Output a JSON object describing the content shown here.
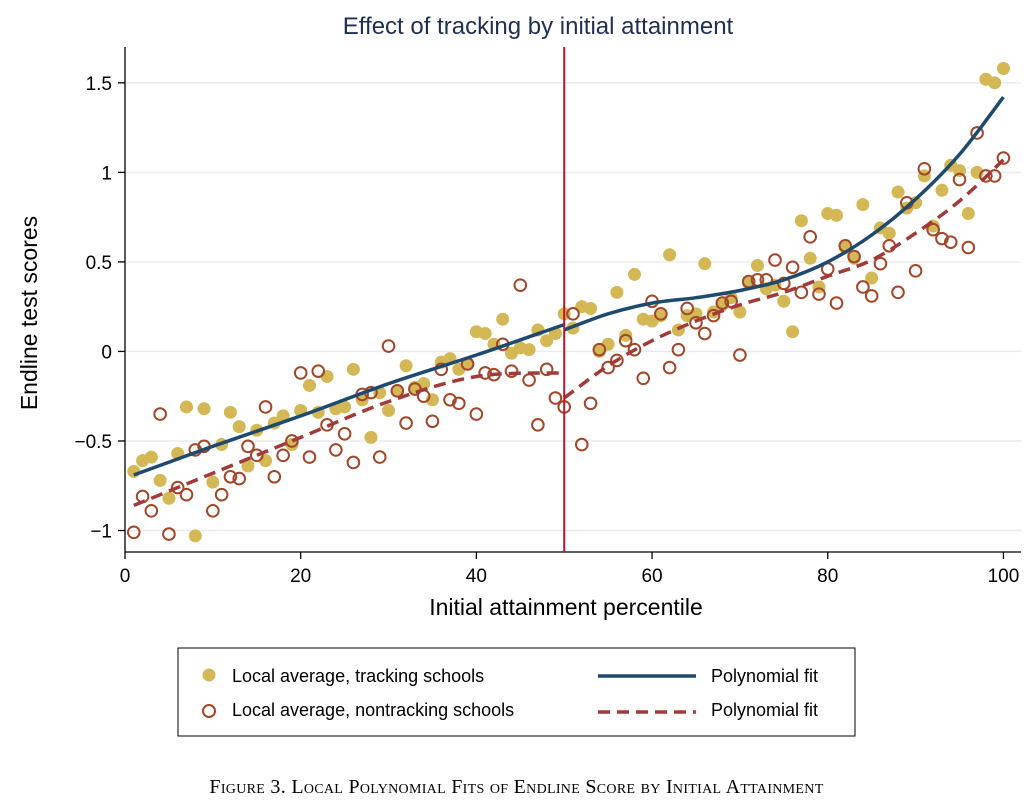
{
  "caption": "Figure 3. Local Polynomial Fits of Endline Score by Initial Attainment",
  "colors": {
    "tracking": "#d3b855",
    "nontracking": "#a2472a",
    "fit_tracking": "#1e4a6e",
    "fit_nontracking": "#a23a3a",
    "cutoff": "#c0112c",
    "grid": "#e9ecef",
    "title": "#1f2f52"
  },
  "chart_data": {
    "type": "scatter",
    "title": "Effect of tracking by initial attainment",
    "xlabel": "Initial attainment percentile",
    "ylabel": "Endline test scores",
    "xlim": [
      0,
      102
    ],
    "ylim": [
      -1.12,
      1.7
    ],
    "xticks": [
      0,
      20,
      40,
      60,
      80,
      100
    ],
    "yticks": [
      1.5,
      1,
      0.5,
      0,
      -0.5,
      -1
    ],
    "ytick_labels": [
      "1.5",
      "1",
      "0.5",
      "0",
      "−0.5",
      "−1"
    ],
    "grid": "horizontal",
    "cutoff_x": 50,
    "legend_position": "bottom",
    "legend": [
      {
        "label": "Local average, tracking schools",
        "symbol": "filled-circle",
        "color": "#d3b855"
      },
      {
        "label": "Polynomial fit",
        "symbol": "solid-line",
        "color": "#1e4a6e"
      },
      {
        "label": "Local average, nontracking schools",
        "symbol": "hollow-circle",
        "color": "#a2472a"
      },
      {
        "label": "Polynomial fit",
        "symbol": "dashed-line",
        "color": "#a23a3a"
      }
    ],
    "series": [
      {
        "name": "Local average, tracking schools",
        "kind": "points",
        "x": [
          1,
          2,
          3,
          4,
          5,
          6,
          7,
          8,
          9,
          10,
          11,
          12,
          13,
          14,
          15,
          16,
          17,
          18,
          19,
          20,
          21,
          22,
          23,
          24,
          25,
          26,
          27,
          28,
          29,
          30,
          31,
          32,
          33,
          34,
          35,
          36,
          37,
          38,
          39,
          40,
          41,
          42,
          43,
          44,
          45,
          46,
          47,
          48,
          49,
          50,
          51,
          52,
          53,
          54,
          55,
          56,
          57,
          58,
          59,
          60,
          61,
          62,
          63,
          64,
          65,
          66,
          67,
          68,
          69,
          70,
          71,
          72,
          73,
          74,
          75,
          76,
          77,
          78,
          79,
          80,
          81,
          82,
          83,
          84,
          85,
          86,
          87,
          88,
          89,
          90,
          91,
          92,
          93,
          94,
          95,
          96,
          97,
          98,
          99,
          100
        ],
        "y": [
          -0.67,
          -0.61,
          -0.59,
          -0.72,
          -0.82,
          -0.57,
          -0.31,
          -1.03,
          -0.32,
          -0.73,
          -0.52,
          -0.34,
          -0.42,
          -0.64,
          -0.44,
          -0.61,
          -0.4,
          -0.36,
          -0.52,
          -0.33,
          -0.19,
          -0.34,
          -0.14,
          -0.32,
          -0.31,
          -0.1,
          -0.27,
          -0.48,
          -0.23,
          -0.33,
          -0.22,
          -0.08,
          -0.2,
          -0.18,
          -0.27,
          -0.06,
          -0.04,
          -0.1,
          -0.07,
          0.11,
          0.1,
          0.04,
          0.18,
          -0.01,
          0.02,
          0.01,
          0.12,
          0.06,
          0.1,
          0.21,
          0.13,
          0.25,
          0.24,
          0.0,
          0.04,
          0.33,
          0.09,
          0.43,
          0.18,
          0.17,
          0.2,
          0.54,
          0.12,
          0.2,
          0.21,
          0.49,
          0.22,
          0.26,
          0.3,
          0.22,
          0.38,
          0.48,
          0.35,
          0.37,
          0.28,
          0.11,
          0.73,
          0.52,
          0.36,
          0.77,
          0.76,
          0.58,
          0.52,
          0.82,
          0.41,
          0.69,
          0.66,
          0.89,
          0.8,
          0.83,
          0.98,
          0.7,
          0.9,
          1.04,
          1.01,
          0.77,
          1.0,
          1.52,
          1.5,
          1.58
        ]
      },
      {
        "name": "Local average, nontracking schools",
        "kind": "points",
        "x": [
          1,
          2,
          3,
          4,
          5,
          6,
          7,
          8,
          9,
          10,
          11,
          12,
          13,
          14,
          15,
          16,
          17,
          18,
          19,
          20,
          21,
          22,
          23,
          24,
          25,
          26,
          27,
          28,
          29,
          30,
          31,
          32,
          33,
          34,
          35,
          36,
          37,
          38,
          39,
          40,
          41,
          42,
          43,
          44,
          45,
          46,
          47,
          48,
          49,
          50,
          51,
          52,
          53,
          54,
          55,
          56,
          57,
          58,
          59,
          60,
          61,
          62,
          63,
          64,
          65,
          66,
          67,
          68,
          69,
          70,
          71,
          72,
          73,
          74,
          75,
          76,
          77,
          78,
          79,
          80,
          81,
          82,
          83,
          84,
          85,
          86,
          87,
          88,
          89,
          90,
          91,
          92,
          93,
          94,
          95,
          96,
          97,
          98,
          99,
          100
        ],
        "y": [
          -1.01,
          -0.81,
          -0.89,
          -0.35,
          -1.02,
          -0.76,
          -0.8,
          -0.55,
          -0.53,
          -0.89,
          -0.8,
          -0.7,
          -0.71,
          -0.53,
          -0.58,
          -0.31,
          -0.7,
          -0.58,
          -0.5,
          -0.12,
          -0.59,
          -0.11,
          -0.41,
          -0.55,
          -0.46,
          -0.62,
          -0.24,
          -0.23,
          -0.59,
          0.03,
          -0.22,
          -0.4,
          -0.21,
          -0.25,
          -0.39,
          -0.1,
          -0.27,
          -0.29,
          -0.07,
          -0.35,
          -0.12,
          -0.13,
          0.04,
          -0.11,
          0.37,
          -0.16,
          -0.41,
          -0.1,
          -0.26,
          -0.31,
          0.21,
          -0.52,
          -0.29,
          0.01,
          -0.09,
          -0.05,
          0.06,
          0.01,
          -0.15,
          0.28,
          0.21,
          -0.09,
          0.01,
          0.24,
          0.16,
          0.1,
          0.2,
          0.27,
          0.28,
          -0.02,
          0.39,
          0.4,
          0.4,
          0.51,
          0.38,
          0.47,
          0.33,
          0.64,
          0.32,
          0.46,
          0.27,
          0.59,
          0.53,
          0.36,
          0.31,
          0.49,
          0.59,
          0.33,
          0.83,
          0.45,
          1.02,
          0.68,
          0.63,
          0.61,
          0.96,
          0.58,
          1.22,
          0.98,
          0.98,
          1.08
        ]
      },
      {
        "name": "Polynomial fit",
        "kind": "line",
        "segments": [
          {
            "x": [
              1,
              10,
              20,
              30,
              40,
              50
            ],
            "y": [
              -0.69,
              -0.53,
              -0.36,
              -0.18,
              -0.02,
              0.15
            ]
          },
          {
            "x": [
              50,
              55,
              60,
              65,
              70,
              75,
              80,
              85,
              90,
              95,
              100
            ],
            "y": [
              0.12,
              0.21,
              0.27,
              0.3,
              0.34,
              0.4,
              0.5,
              0.65,
              0.85,
              1.1,
              1.42
            ]
          }
        ]
      },
      {
        "name": "Polynomial fit",
        "kind": "line",
        "style": "dashed",
        "segments": [
          {
            "x": [
              1,
              10,
              20,
              30,
              40,
              50
            ],
            "y": [
              -0.86,
              -0.68,
              -0.48,
              -0.28,
              -0.14,
              -0.12
            ]
          },
          {
            "x": [
              50,
              55,
              60,
              65,
              70,
              75,
              80,
              85,
              90,
              95,
              100
            ],
            "y": [
              -0.26,
              -0.08,
              0.06,
              0.17,
              0.26,
              0.33,
              0.42,
              0.51,
              0.66,
              0.84,
              1.07
            ]
          }
        ]
      }
    ]
  }
}
